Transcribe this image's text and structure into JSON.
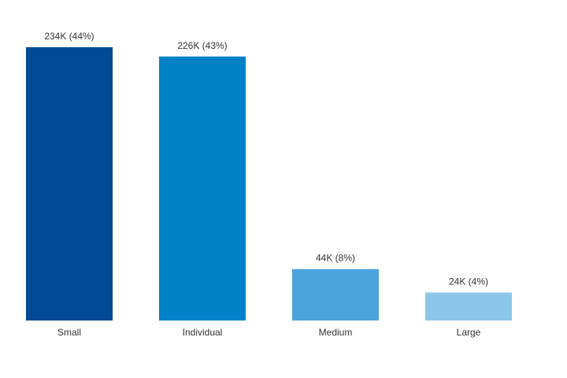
{
  "chart_data": {
    "type": "bar",
    "categories": [
      "Small",
      "Individual",
      "Medium",
      "Large"
    ],
    "values": [
      234,
      226,
      44,
      24
    ],
    "data_labels": [
      "234K (44%)",
      "226K (43%)",
      "44K (8%)",
      "24K (4%)"
    ],
    "colors": [
      "#004a93",
      "#0082c8",
      "#4aa3dd",
      "#8ec5ea"
    ],
    "title": "",
    "xlabel": "",
    "ylabel": "",
    "ylim": [
      0,
      240
    ],
    "grid": false,
    "legend": "none"
  }
}
